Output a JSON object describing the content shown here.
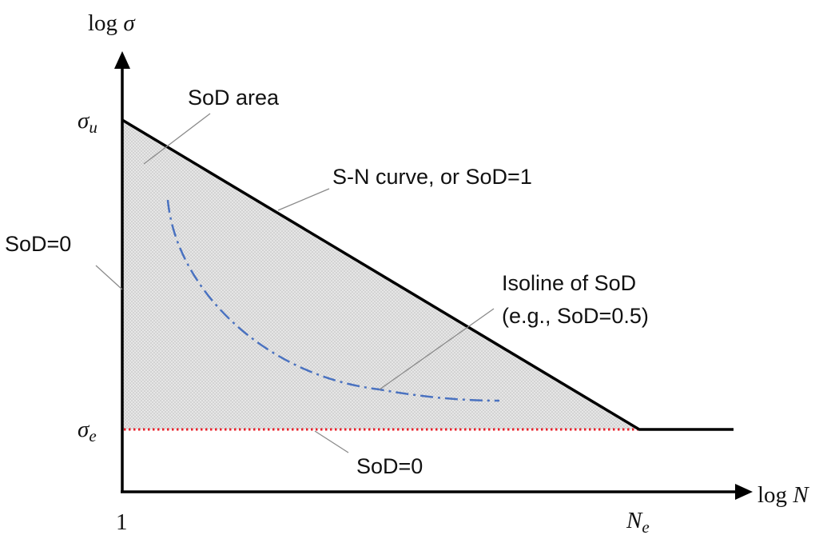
{
  "axes": {
    "y_label_func": "log",
    "y_label_var": "σ",
    "x_label_func": "log",
    "x_label_var": "N"
  },
  "ticks": {
    "sigma_u_base": "σ",
    "sigma_u_sub": "u",
    "sigma_e_base": "σ",
    "sigma_e_sub": "e",
    "origin": "1",
    "n_e_base": "N",
    "n_e_sub": "e"
  },
  "annotations": {
    "sod_area": "SoD area",
    "sn_curve": "S-N curve, or SoD=1",
    "sod_zero_left": "SoD=0",
    "sod_zero_bottom": "SoD=0",
    "isoline_line1": "Isoline of SoD",
    "isoline_line2": "(e.g., SoD=0.5)"
  },
  "colors": {
    "curve": "#000000",
    "boundary_dotted": "#e8202a",
    "isoline": "#4a72c0",
    "shaded_area": "#dcdcdc",
    "leader_line": "#8a8a8a"
  }
}
